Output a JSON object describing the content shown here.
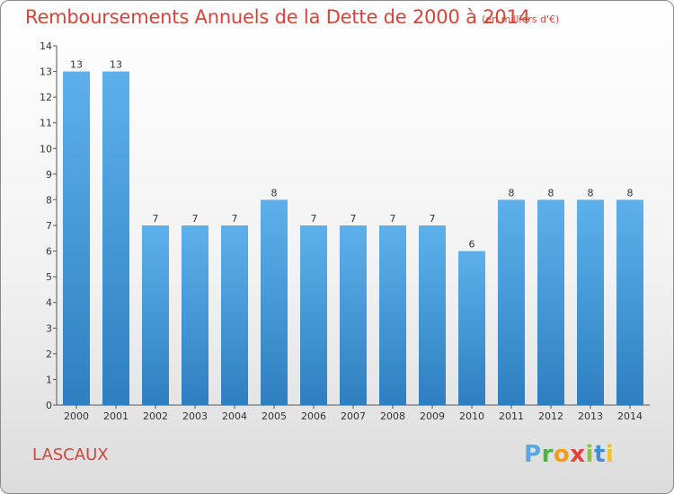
{
  "chart_data": {
    "type": "bar",
    "title": "Remboursements Annuels de la Dette de 2000 à 2014",
    "unit_note": "(en milliers d'€)",
    "categories": [
      "2000",
      "2001",
      "2002",
      "2003",
      "2004",
      "2005",
      "2006",
      "2007",
      "2008",
      "2009",
      "2010",
      "2011",
      "2012",
      "2013",
      "2014"
    ],
    "values": [
      13,
      13,
      7,
      7,
      7,
      8,
      7,
      7,
      7,
      7,
      6,
      8,
      8,
      8,
      8
    ],
    "ylim": [
      0,
      14
    ],
    "yticks": [
      0,
      1,
      2,
      3,
      4,
      5,
      6,
      7,
      8,
      9,
      10,
      11,
      12,
      13,
      14
    ],
    "grid": false,
    "bar_color_top": "#5eb0ec",
    "bar_color_bottom": "#2f7fc0",
    "label_color": "#d7423a"
  },
  "footer": {
    "commune": "LASCAUX",
    "logo": {
      "p": "P",
      "r": "r",
      "o": "o",
      "x": "x",
      "i1": "i",
      "t": "t",
      "i2": "i"
    }
  }
}
